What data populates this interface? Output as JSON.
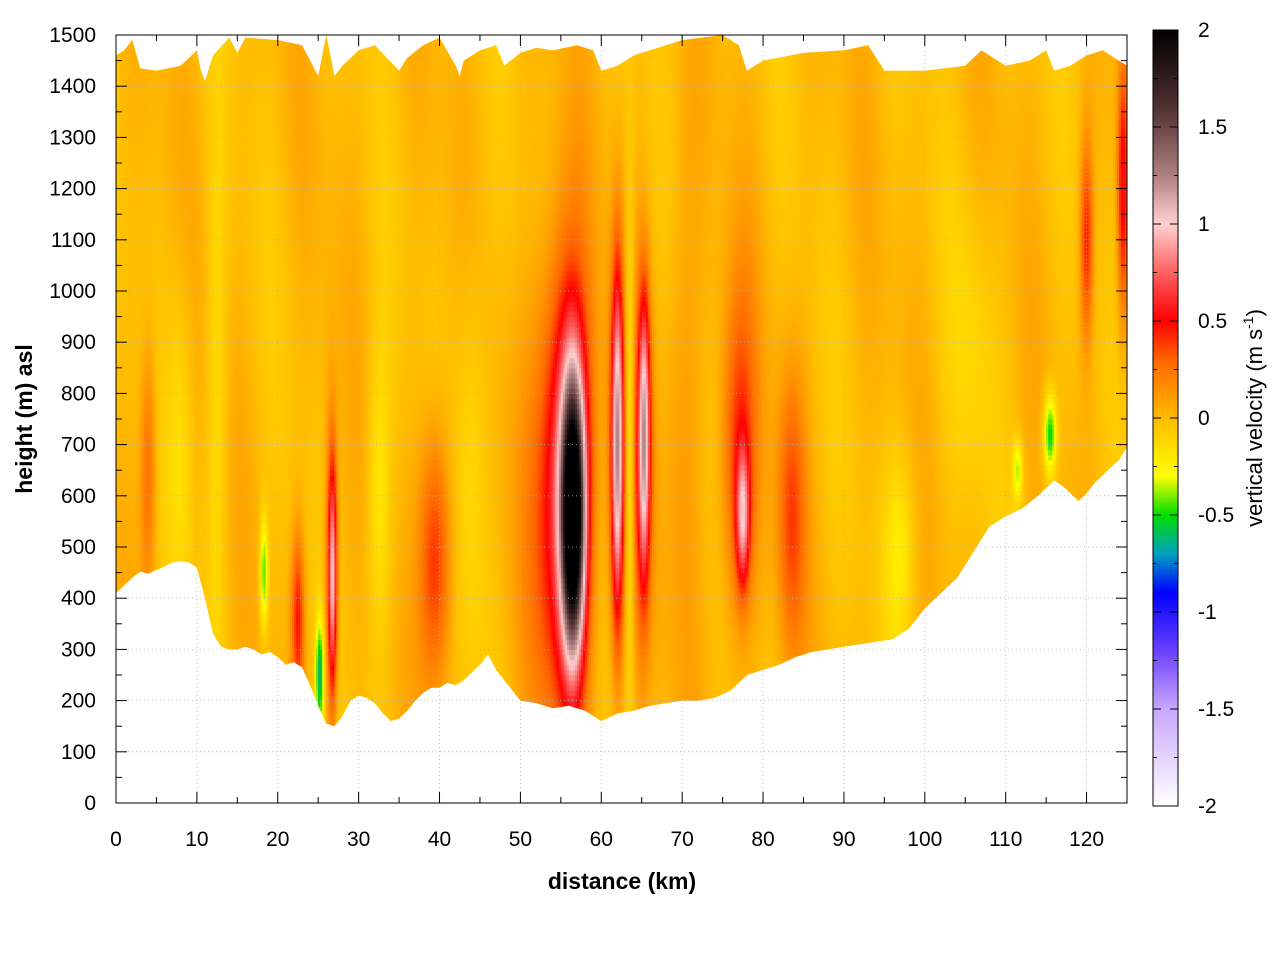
{
  "chart_data": {
    "type": "heatmap",
    "title": "",
    "xlabel": "distance (km)",
    "ylabel": "height (m) asl",
    "xlim": [
      0,
      125
    ],
    "ylim": [
      0,
      1500
    ],
    "x_ticks": [
      "0",
      "10",
      "20",
      "30",
      "40",
      "50",
      "60",
      "70",
      "80",
      "90",
      "100",
      "110",
      "120"
    ],
    "y_ticks": [
      "0",
      "100",
      "200",
      "300",
      "400",
      "500",
      "600",
      "700",
      "800",
      "900",
      "1000",
      "1100",
      "1200",
      "1300",
      "1400",
      "1500"
    ],
    "grid": true,
    "colorbar": {
      "label_prefix": "vertical velocity (m s",
      "label_exponent": "-1",
      "label_suffix": ")",
      "range": [
        -2,
        2
      ],
      "ticks": [
        "2",
        "1.5",
        "1",
        "0.5",
        "0",
        "-0.5",
        "-1",
        "-1.5",
        "-2"
      ],
      "stops": [
        {
          "v": -2.0,
          "c": "#ffffff"
        },
        {
          "v": -1.5,
          "c": "#c8a8ff"
        },
        {
          "v": -1.2,
          "c": "#6a40ff"
        },
        {
          "v": -0.9,
          "c": "#0000ff"
        },
        {
          "v": -0.7,
          "c": "#00a0c0"
        },
        {
          "v": -0.5,
          "c": "#00dd00"
        },
        {
          "v": -0.3,
          "c": "#ffff00"
        },
        {
          "v": 0.0,
          "c": "#ffbb00"
        },
        {
          "v": 0.3,
          "c": "#ff6600"
        },
        {
          "v": 0.5,
          "c": "#ff0000"
        },
        {
          "v": 0.75,
          "c": "#ff6060"
        },
        {
          "v": 1.0,
          "c": "#ffd0d0"
        },
        {
          "v": 1.25,
          "c": "#b08080"
        },
        {
          "v": 1.6,
          "c": "#503030"
        },
        {
          "v": 2.0,
          "c": "#000000"
        }
      ]
    },
    "terrain": {
      "x_km": [
        0,
        1,
        2,
        3,
        4,
        5,
        6,
        7,
        8,
        9,
        10,
        11,
        12,
        13,
        14,
        15,
        16,
        17,
        18,
        19,
        20,
        21,
        22,
        23,
        24,
        25,
        26,
        27,
        28,
        29,
        30,
        31,
        32,
        33,
        34,
        35,
        36,
        37,
        38,
        39,
        40,
        41,
        42,
        43,
        44,
        45,
        46,
        47,
        48,
        49,
        50,
        52,
        54,
        56,
        58,
        60,
        62,
        64,
        66,
        68,
        70,
        72,
        74,
        76,
        78,
        80,
        82,
        84,
        86,
        88,
        90,
        92,
        94,
        96,
        98,
        100,
        102,
        104,
        106,
        108,
        110,
        112,
        114,
        116,
        117,
        118,
        119,
        120,
        121,
        122,
        123,
        124,
        125
      ],
      "z_m": [
        410,
        425,
        440,
        452,
        448,
        455,
        462,
        470,
        472,
        470,
        460,
        400,
        330,
        305,
        300,
        300,
        305,
        300,
        290,
        295,
        285,
        270,
        275,
        265,
        230,
        190,
        155,
        150,
        170,
        200,
        210,
        205,
        195,
        175,
        160,
        165,
        180,
        200,
        215,
        225,
        225,
        235,
        230,
        240,
        255,
        270,
        290,
        260,
        240,
        220,
        200,
        195,
        185,
        190,
        180,
        160,
        175,
        180,
        190,
        195,
        200,
        200,
        205,
        220,
        250,
        260,
        270,
        285,
        295,
        300,
        305,
        310,
        315,
        320,
        340,
        380,
        410,
        440,
        490,
        540,
        560,
        575,
        600,
        630,
        620,
        605,
        590,
        605,
        625,
        640,
        655,
        670,
        695
      ]
    },
    "top_edge": {
      "x_km": [
        0,
        1,
        2,
        3,
        5,
        8,
        10,
        10.5,
        11,
        12,
        14,
        15,
        16,
        20,
        23,
        25,
        26,
        27,
        28,
        30,
        32,
        35,
        36,
        38,
        40,
        42,
        42.5,
        43,
        45,
        47,
        48,
        50,
        52,
        54,
        57,
        59,
        60,
        62,
        64,
        66,
        68,
        70,
        75,
        77,
        78,
        80,
        85,
        90,
        93,
        95,
        100,
        105,
        107,
        110,
        113,
        115,
        116,
        118,
        120,
        122,
        124,
        125
      ],
      "z_m": [
        1460,
        1470,
        1490,
        1435,
        1430,
        1440,
        1470,
        1430,
        1410,
        1460,
        1495,
        1465,
        1495,
        1490,
        1480,
        1420,
        1500,
        1420,
        1440,
        1470,
        1480,
        1430,
        1455,
        1480,
        1495,
        1440,
        1420,
        1450,
        1470,
        1480,
        1440,
        1465,
        1475,
        1470,
        1480,
        1470,
        1430,
        1440,
        1460,
        1470,
        1480,
        1490,
        1500,
        1480,
        1430,
        1450,
        1465,
        1470,
        1480,
        1430,
        1430,
        1440,
        1470,
        1440,
        1450,
        1470,
        1430,
        1440,
        1460,
        1470,
        1450,
        1440
      ]
    },
    "features": [
      {
        "x_km": 56.5,
        "z_m": 560,
        "width_km": 1.4,
        "height_m": 260,
        "w": 2.1
      },
      {
        "x_km": 56.0,
        "z_m": 650,
        "width_km": 2.8,
        "height_m": 430,
        "w": 0.6
      },
      {
        "x_km": 54.0,
        "z_m": 580,
        "width_km": 3.5,
        "height_m": 450,
        "w": 0.3
      },
      {
        "x_km": 62.0,
        "z_m": 700,
        "width_km": 0.7,
        "height_m": 320,
        "w": 0.95
      },
      {
        "x_km": 62.0,
        "z_m": 650,
        "width_km": 1.2,
        "height_m": 430,
        "w": 0.3
      },
      {
        "x_km": 63.5,
        "z_m": 700,
        "width_km": 0.6,
        "height_m": 450,
        "w": -0.35
      },
      {
        "x_km": 65.3,
        "z_m": 720,
        "width_km": 0.7,
        "height_m": 260,
        "w": 0.9
      },
      {
        "x_km": 65.0,
        "z_m": 650,
        "width_km": 1.4,
        "height_m": 380,
        "w": 0.3
      },
      {
        "x_km": 77.5,
        "z_m": 560,
        "width_km": 0.8,
        "height_m": 130,
        "w": 0.7
      },
      {
        "x_km": 77.0,
        "z_m": 680,
        "width_km": 2.2,
        "height_m": 330,
        "w": 0.42
      },
      {
        "x_km": 83.5,
        "z_m": 560,
        "width_km": 1.8,
        "height_m": 280,
        "w": 0.35
      },
      {
        "x_km": 39.5,
        "z_m": 480,
        "width_km": 2.0,
        "height_m": 250,
        "w": 0.45
      },
      {
        "x_km": 44.0,
        "z_m": 700,
        "width_km": 2.0,
        "height_m": 400,
        "w": -0.15
      },
      {
        "x_km": 26.8,
        "z_m": 440,
        "width_km": 0.5,
        "height_m": 220,
        "w": 0.8
      },
      {
        "x_km": 26.5,
        "z_m": 450,
        "width_km": 0.8,
        "height_m": 320,
        "w": 0.3
      },
      {
        "x_km": 25.2,
        "z_m": 250,
        "width_km": 0.5,
        "height_m": 110,
        "w": -0.6
      },
      {
        "x_km": 22.5,
        "z_m": 360,
        "width_km": 0.8,
        "height_m": 170,
        "w": 0.45
      },
      {
        "x_km": 18.3,
        "z_m": 450,
        "width_km": 0.5,
        "height_m": 110,
        "w": -0.45
      },
      {
        "x_km": 12.5,
        "z_m": 800,
        "width_km": 1.2,
        "height_m": 500,
        "w": -0.15
      },
      {
        "x_km": 4.0,
        "z_m": 650,
        "width_km": 1.0,
        "height_m": 250,
        "w": 0.3
      },
      {
        "x_km": 8.0,
        "z_m": 700,
        "width_km": 1.5,
        "height_m": 350,
        "w": -0.15
      },
      {
        "x_km": 32.5,
        "z_m": 600,
        "width_km": 1.5,
        "height_m": 300,
        "w": -0.2
      },
      {
        "x_km": 70.0,
        "z_m": 800,
        "width_km": 2.5,
        "height_m": 500,
        "w": 0.12
      },
      {
        "x_km": 97.0,
        "z_m": 500,
        "width_km": 2.0,
        "height_m": 200,
        "w": -0.2
      },
      {
        "x_km": 106.0,
        "z_m": 900,
        "width_km": 3.0,
        "height_m": 300,
        "w": -0.1
      },
      {
        "x_km": 111.5,
        "z_m": 650,
        "width_km": 0.6,
        "height_m": 60,
        "w": -0.35
      },
      {
        "x_km": 115.5,
        "z_m": 720,
        "width_km": 0.8,
        "height_m": 80,
        "w": -0.55
      },
      {
        "x_km": 120.0,
        "z_m": 1100,
        "width_km": 0.8,
        "height_m": 200,
        "w": 0.45
      },
      {
        "x_km": 124.5,
        "z_m": 1200,
        "width_km": 0.7,
        "height_m": 250,
        "w": 0.55
      }
    ]
  }
}
